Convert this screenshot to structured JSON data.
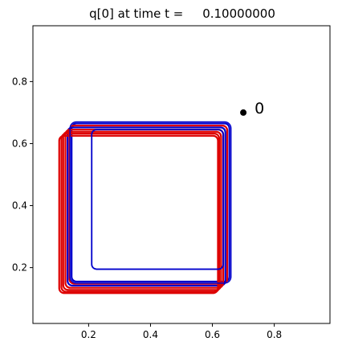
{
  "chart_data": {
    "type": "line",
    "title": "q[0] at time t =     0.10000000",
    "xlabel": "",
    "ylabel": "",
    "xlim": [
      0.02,
      0.98
    ],
    "ylim": [
      0.02,
      0.98
    ],
    "x_ticks": [
      0.2,
      0.4,
      0.6,
      0.8
    ],
    "x_tick_labels": [
      "0.2",
      "0.4",
      "0.6",
      "0.8"
    ],
    "y_ticks": [
      0.2,
      0.4,
      0.6,
      0.8
    ],
    "y_tick_labels": [
      "0.2",
      "0.4",
      "0.6",
      "0.8"
    ],
    "grid": false,
    "point": {
      "x": 0.7,
      "y": 0.7,
      "label": "0",
      "color": "#000000"
    },
    "contours": {
      "colors": {
        "outer": "#0000cc",
        "fill": "#dd0000",
        "lines": "#000000"
      },
      "series": [
        {
          "color": "#0000cc",
          "x0": 0.145,
          "y0": 0.155,
          "x1": 0.655,
          "y1": 0.665
        },
        {
          "color": "#dd0000",
          "x0": 0.138,
          "y0": 0.148,
          "x1": 0.648,
          "y1": 0.658
        },
        {
          "color": "#0000cc",
          "x0": 0.132,
          "y0": 0.142,
          "x1": 0.642,
          "y1": 0.652
        },
        {
          "color": "#dd0000",
          "x0": 0.125,
          "y0": 0.135,
          "x1": 0.635,
          "y1": 0.645
        },
        {
          "color": "#dd0000",
          "x0": 0.118,
          "y0": 0.128,
          "x1": 0.628,
          "y1": 0.638
        },
        {
          "color": "#dd0000",
          "x0": 0.112,
          "y0": 0.122,
          "x1": 0.622,
          "y1": 0.632
        },
        {
          "color": "#dd0000",
          "x0": 0.105,
          "y0": 0.118,
          "x1": 0.618,
          "y1": 0.625
        }
      ],
      "inner": {
        "color": "#0000cc",
        "x0": 0.21,
        "y0": 0.195,
        "x1": 0.635,
        "y1": 0.645
      }
    }
  }
}
